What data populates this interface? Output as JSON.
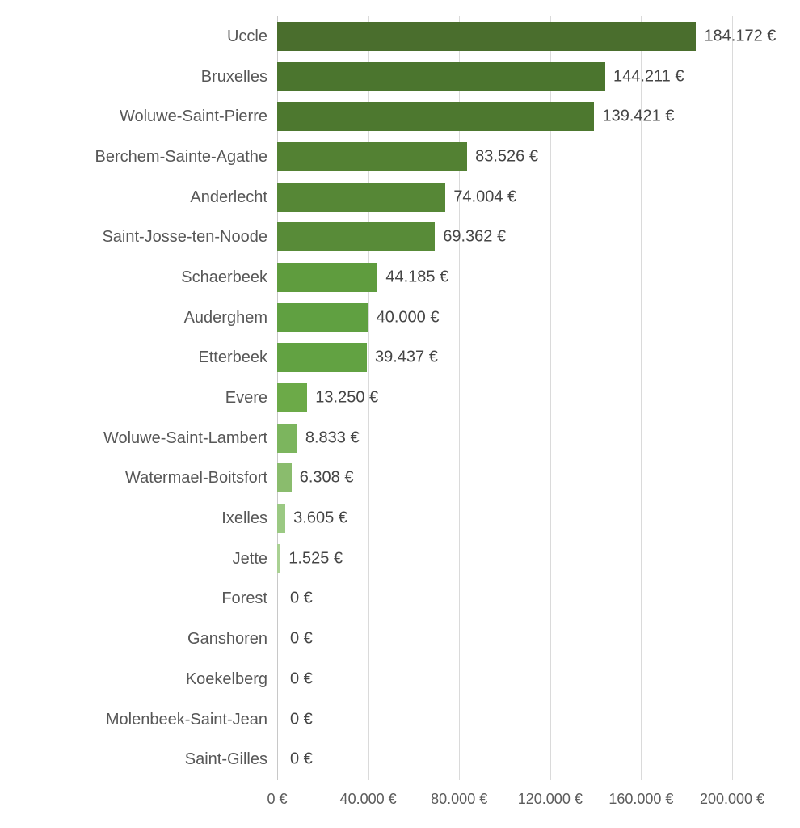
{
  "chart_data": {
    "type": "bar",
    "orientation": "horizontal",
    "title": "",
    "xlabel": "",
    "ylabel": "",
    "xlim": [
      0,
      200000
    ],
    "grid": "vertical",
    "legend": "none",
    "categories": [
      "Uccle",
      "Bruxelles",
      "Woluwe-Saint-Pierre",
      "Berchem-Sainte-Agathe",
      "Anderlecht",
      "Saint-Josse-ten-Noode",
      "Schaerbeek",
      "Auderghem",
      "Etterbeek",
      "Evere",
      "Woluwe-Saint-Lambert",
      "Watermael-Boitsfort",
      "Ixelles",
      "Jette",
      "Forest",
      "Ganshoren",
      "Koekelberg",
      "Molenbeek-Saint-Jean",
      "Saint-Gilles"
    ],
    "values": [
      184172,
      144211,
      139421,
      83526,
      74004,
      69362,
      44185,
      40000,
      39437,
      13250,
      8833,
      6308,
      3605,
      1525,
      0,
      0,
      0,
      0,
      0
    ],
    "value_labels": [
      "184.172 €",
      "144.211 €",
      "139.421 €",
      "83.526 €",
      "74.004 €",
      "69.362 €",
      "44.185 €",
      "40.000 €",
      "39.437 €",
      "13.250 €",
      "8.833 €",
      "6.308 €",
      "3.605 €",
      "1.525 €",
      "0 €",
      "0 €",
      "0 €",
      "0 €",
      "0 €"
    ],
    "bar_colors": [
      "#4a6e2d",
      "#4b752e",
      "#4d782f",
      "#538133",
      "#568736",
      "#588b38",
      "#5f9c3e",
      "#60a041",
      "#62a242",
      "#6caa48",
      "#7cb55e",
      "#8abc6d",
      "#9bc983",
      "#aad193",
      null,
      null,
      null,
      null,
      null
    ],
    "x_ticks": [
      {
        "value": 0,
        "label": "0 €"
      },
      {
        "value": 40000,
        "label": "40.000 €"
      },
      {
        "value": 80000,
        "label": "80.000 €"
      },
      {
        "value": 120000,
        "label": "120.000 €"
      },
      {
        "value": 160000,
        "label": "160.000 €"
      },
      {
        "value": 200000,
        "label": "200.000 €"
      }
    ],
    "colors": {
      "background": "#ffffff",
      "gridline": "#dadada",
      "axis_line": "#c8c8c8",
      "category_label": "#575757",
      "value_label": "#454545",
      "tick_label": "#5b5b5b",
      "bar_dark": "#4a6e2d",
      "bar_light": "#aad193"
    }
  }
}
